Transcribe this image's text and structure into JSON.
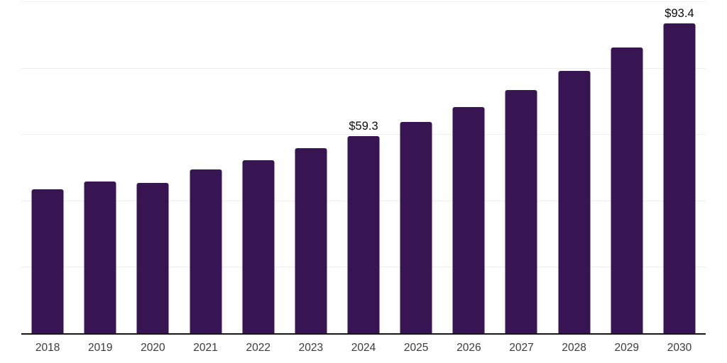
{
  "chart_data": {
    "type": "bar",
    "title": "",
    "xlabel": "",
    "ylabel": "",
    "categories": [
      "2018",
      "2019",
      "2020",
      "2021",
      "2022",
      "2023",
      "2024",
      "2025",
      "2026",
      "2027",
      "2028",
      "2029",
      "2030"
    ],
    "values": [
      43.3,
      45.8,
      45.2,
      49.3,
      52.2,
      55.7,
      59.3,
      63.6,
      68.1,
      73.4,
      79.1,
      86.1,
      93.4
    ],
    "data_labels": [
      "",
      "",
      "",
      "",
      "",
      "",
      "$59.3",
      "",
      "",
      "",
      "",
      "",
      "$93.4"
    ],
    "ylim": [
      0,
      100
    ],
    "gridline_step": 20,
    "grid": true,
    "legend": false,
    "y_axis_labels_visible": false
  },
  "style": {
    "bar_color": "#371452",
    "axis_color": "#161616",
    "gridline_color": "#ededed",
    "tick_label_color": "#3b3b3b",
    "data_label_color": "#0a0a0a",
    "background": "#ffffff"
  }
}
